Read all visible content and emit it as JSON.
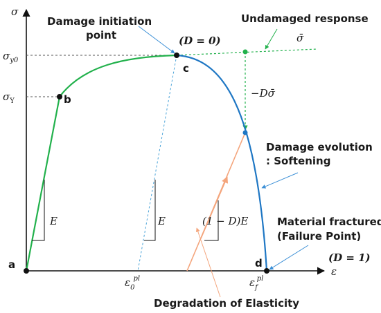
{
  "axes": {
    "y_symbol": "σ",
    "x_symbol": "ε",
    "sigma_y0_base": "σ",
    "sigma_y0_sub": "y0",
    "sigma_Y_base": "σ",
    "sigma_Y_sub": "Y",
    "eps0_base": "ε",
    "eps0_sub": "0",
    "eps0_sup": "pl",
    "epsf_base": "ε",
    "epsf_sub": "f",
    "epsf_sup": "pl"
  },
  "points": {
    "a": "a",
    "b": "b",
    "c": "c",
    "d": "d"
  },
  "labels": {
    "damage_initiation_line1": "Damage initiation",
    "damage_initiation_line2": "point",
    "d_zero": "(D = 0)",
    "undamaged_response": "Undamaged response",
    "sigma_bar": "σ̄",
    "minus_d_sigma_bar": "−Dσ̄",
    "damage_evolution_line1": "Damage evolution",
    "damage_evolution_line2": ": Softening",
    "material_fractured_line1": "Material fractured",
    "material_fractured_line2": "(Failure Point)",
    "d_one": "(D = 1)",
    "degradation": "Degradation of Elasticity",
    "e_left": "E",
    "e_mid": "E",
    "one_minus_d_e": "(1 − D)E"
  },
  "colors": {
    "axis": "#111111",
    "hardening": "#22b14c",
    "softening": "#1f77c4",
    "undamaged": "#22b14c",
    "unloading": "#f4a57c",
    "dashed_blue": "#4aa3d8",
    "arrow_blue": "#3b8fd6",
    "guide": "#555555"
  }
}
